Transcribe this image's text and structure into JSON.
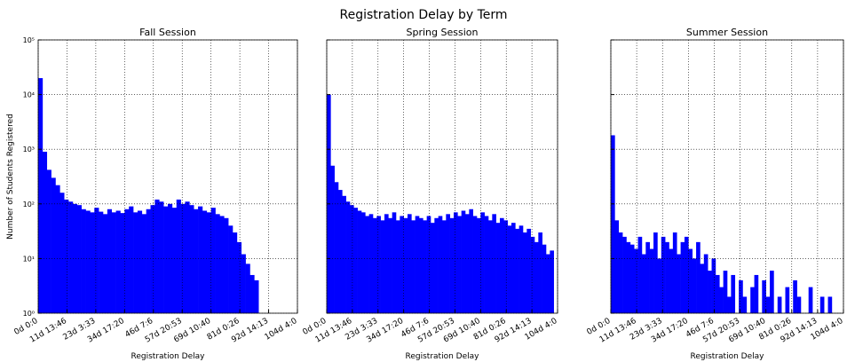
{
  "title": "Registration Delay by Term",
  "chart_data": [
    {
      "type": "histogram",
      "title": "Fall Session",
      "xlabel": "Registration Delay",
      "ylabel": "Number of Students Registered",
      "color": "#0000ff",
      "log_y": true,
      "grid": true,
      "bins": [
        0,
        150000,
        300000,
        450000,
        600000,
        750000,
        900000,
        1050000,
        1200000,
        1350000,
        1500000,
        1650000,
        1800000,
        1950000,
        2100000,
        2250000,
        2400000,
        2550000,
        2700000,
        2850000,
        3000000,
        3150000,
        3300000,
        3450000,
        3600000,
        3750000,
        3900000,
        4050000,
        4200000,
        4350000,
        4500000,
        4650000,
        4800000,
        4950000,
        5100000,
        5250000,
        5400000,
        5550000,
        5700000,
        5850000,
        6000000,
        6150000,
        6300000,
        6450000,
        6600000,
        6750000,
        6900000,
        7050000,
        7200000,
        7350000,
        7500000,
        7650000,
        7800000,
        7950000,
        8100000,
        8250000,
        8400000,
        8550000,
        8700000,
        8850000,
        9000000
      ],
      "values": [
        20000,
        900,
        420,
        300,
        220,
        160,
        120,
        110,
        100,
        95,
        80,
        75,
        70,
        85,
        72,
        65,
        80,
        70,
        75,
        68,
        80,
        90,
        70,
        75,
        65,
        80,
        95,
        120,
        110,
        90,
        100,
        85,
        120,
        100,
        110,
        95,
        80,
        90,
        75,
        70,
        85,
        65,
        60,
        55,
        40,
        30,
        20,
        12,
        8,
        5,
        4,
        0,
        0,
        0,
        0,
        0,
        0,
        0,
        0,
        0
      ],
      "xlim": [
        0,
        9000000
      ],
      "ylim": [
        1,
        100000
      ],
      "xticks": [
        {
          "value": 0,
          "label": "0d 0:0"
        },
        {
          "value": 1000000,
          "label": "11d 13:46"
        },
        {
          "value": 2000000,
          "label": "23d 3:33"
        },
        {
          "value": 3000000,
          "label": "34d 17:20"
        },
        {
          "value": 4000000,
          "label": "46d 7:6"
        },
        {
          "value": 5000000,
          "label": "57d 20:53"
        },
        {
          "value": 6000000,
          "label": "69d 10:40"
        },
        {
          "value": 7000000,
          "label": "81d 0:26"
        },
        {
          "value": 8000000,
          "label": "92d 14:13"
        },
        {
          "value": 9000000,
          "label": "104d 4:0"
        }
      ],
      "yticks": [
        {
          "value": 1,
          "label": "10⁰"
        },
        {
          "value": 10,
          "label": "10¹"
        },
        {
          "value": 100,
          "label": "10²"
        },
        {
          "value": 1000,
          "label": "10³"
        },
        {
          "value": 10000,
          "label": "10⁴"
        },
        {
          "value": 100000,
          "label": "10⁵"
        }
      ]
    },
    {
      "type": "histogram",
      "title": "Spring Session",
      "xlabel": "Registration Delay",
      "color": "#0000ff",
      "log_y": true,
      "grid": true,
      "bins": [
        0,
        150000,
        300000,
        450000,
        600000,
        750000,
        900000,
        1050000,
        1200000,
        1350000,
        1500000,
        1650000,
        1800000,
        1950000,
        2100000,
        2250000,
        2400000,
        2550000,
        2700000,
        2850000,
        3000000,
        3150000,
        3300000,
        3450000,
        3600000,
        3750000,
        3900000,
        4050000,
        4200000,
        4350000,
        4500000,
        4650000,
        4800000,
        4950000,
        5100000,
        5250000,
        5400000,
        5550000,
        5700000,
        5850000,
        6000000,
        6150000,
        6300000,
        6450000,
        6600000,
        6750000,
        6900000,
        7050000,
        7200000,
        7350000,
        7500000,
        7650000,
        7800000,
        7950000,
        8100000,
        8250000,
        8400000,
        8550000,
        8700000,
        8850000,
        9000000
      ],
      "values": [
        10000,
        500,
        250,
        180,
        140,
        110,
        95,
        85,
        75,
        70,
        60,
        65,
        55,
        60,
        50,
        65,
        55,
        70,
        50,
        60,
        55,
        65,
        50,
        60,
        55,
        50,
        60,
        45,
        55,
        60,
        50,
        65,
        55,
        70,
        60,
        75,
        65,
        80,
        60,
        55,
        70,
        60,
        50,
        65,
        45,
        55,
        50,
        40,
        45,
        35,
        40,
        30,
        35,
        25,
        20,
        30,
        18,
        12,
        14,
        0
      ],
      "xlim": [
        0,
        9000000
      ],
      "ylim": [
        1,
        100000
      ],
      "xticks": [
        {
          "value": 0,
          "label": "0d 0:0"
        },
        {
          "value": 1000000,
          "label": "11d 13:46"
        },
        {
          "value": 2000000,
          "label": "23d 3:33"
        },
        {
          "value": 3000000,
          "label": "34d 17:20"
        },
        {
          "value": 4000000,
          "label": "46d 7:6"
        },
        {
          "value": 5000000,
          "label": "57d 20:53"
        },
        {
          "value": 6000000,
          "label": "69d 10:40"
        },
        {
          "value": 7000000,
          "label": "81d 0:26"
        },
        {
          "value": 8000000,
          "label": "92d 14:13"
        },
        {
          "value": 9000000,
          "label": "104d 4:0"
        }
      ]
    },
    {
      "type": "histogram",
      "title": "Summer Session",
      "xlabel": "Registration Delay",
      "color": "#0000ff",
      "log_y": true,
      "grid": true,
      "bins": [
        0,
        150000,
        300000,
        450000,
        600000,
        750000,
        900000,
        1050000,
        1200000,
        1350000,
        1500000,
        1650000,
        1800000,
        1950000,
        2100000,
        2250000,
        2400000,
        2550000,
        2700000,
        2850000,
        3000000,
        3150000,
        3300000,
        3450000,
        3600000,
        3750000,
        3900000,
        4050000,
        4200000,
        4350000,
        4500000,
        4650000,
        4800000,
        4950000,
        5100000,
        5250000,
        5400000,
        5550000,
        5700000,
        5850000,
        6000000,
        6150000,
        6300000,
        6450000,
        6600000,
        6750000,
        6900000,
        7050000,
        7200000,
        7350000,
        7500000,
        7650000,
        7800000,
        7950000,
        8100000,
        8250000,
        8400000,
        8550000,
        8700000,
        8850000,
        9000000
      ],
      "values": [
        1800,
        50,
        30,
        25,
        20,
        18,
        15,
        25,
        12,
        20,
        15,
        30,
        10,
        25,
        20,
        15,
        30,
        12,
        20,
        25,
        15,
        10,
        20,
        8,
        12,
        6,
        10,
        5,
        3,
        6,
        2,
        5,
        1,
        4,
        2,
        0,
        3,
        5,
        1,
        4,
        2,
        6,
        1,
        2,
        0,
        3,
        1,
        4,
        2,
        0,
        1,
        3,
        1,
        0,
        2,
        1,
        2,
        0,
        0,
        0
      ],
      "xlim": [
        0,
        9000000
      ],
      "ylim": [
        1,
        100000
      ],
      "xticks": [
        {
          "value": 0,
          "label": "0d 0:0"
        },
        {
          "value": 1000000,
          "label": "11d 13:46"
        },
        {
          "value": 2000000,
          "label": "23d 3:33"
        },
        {
          "value": 3000000,
          "label": "34d 17:20"
        },
        {
          "value": 4000000,
          "label": "46d 7:6"
        },
        {
          "value": 5000000,
          "label": "57d 20:53"
        },
        {
          "value": 6000000,
          "label": "69d 10:40"
        },
        {
          "value": 7000000,
          "label": "81d 0:26"
        },
        {
          "value": 8000000,
          "label": "92d 14:13"
        },
        {
          "value": 9000000,
          "label": "104d 4:0"
        }
      ]
    }
  ]
}
